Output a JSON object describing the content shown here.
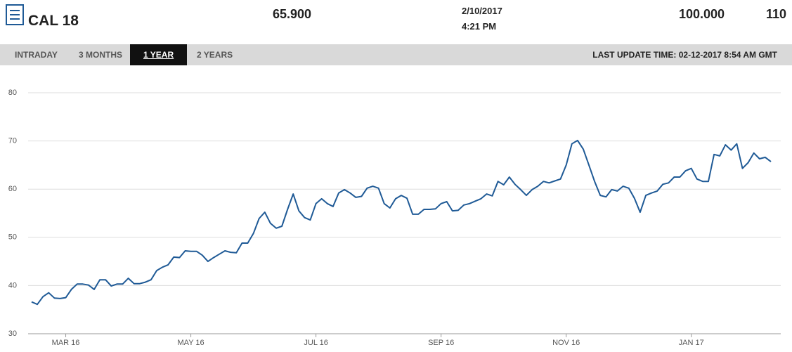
{
  "header": {
    "title": "CAL 18",
    "price": "65.900",
    "date": "2/10/2017",
    "time": "4:21 PM",
    "volume": "100.000",
    "extra": "110"
  },
  "tabs": [
    "INTRADAY",
    "3 MONTHS",
    "1 YEAR",
    "2 YEARS"
  ],
  "active_tab": 2,
  "last_update": "LAST UPDATE TIME: 02-12-2017 8:54 AM GMT",
  "chart_data": {
    "type": "line",
    "color": "#1f5a96",
    "grid": true,
    "ylim": [
      30,
      80
    ],
    "yticks": [
      30,
      40,
      50,
      60,
      70,
      80
    ],
    "categories": [
      null,
      null,
      null,
      null,
      null,
      null,
      "MAR 16",
      null,
      null,
      null,
      null,
      null,
      null,
      null,
      null,
      null,
      null,
      null,
      null,
      null,
      null,
      null,
      null,
      null,
      null,
      null,
      null,
      null,
      "MAY 16",
      null,
      null,
      null,
      null,
      null,
      null,
      null,
      null,
      null,
      null,
      null,
      null,
      null,
      null,
      null,
      null,
      null,
      null,
      null,
      null,
      null,
      "JUL 16",
      null,
      null,
      null,
      null,
      null,
      null,
      null,
      null,
      null,
      null,
      null,
      null,
      null,
      null,
      null,
      null,
      null,
      null,
      null,
      null,
      null,
      "SEP 16",
      null,
      null,
      null,
      null,
      null,
      null,
      null,
      null,
      null,
      null,
      null,
      null,
      null,
      null,
      null,
      null,
      null,
      null,
      null,
      null,
      null,
      "NOV 16",
      null,
      null,
      null,
      null,
      null,
      null,
      null,
      null,
      null,
      null,
      null,
      null,
      null,
      null,
      null,
      null,
      null,
      null,
      null,
      null,
      null,
      "JAN 17",
      null,
      null,
      null,
      null,
      null,
      null,
      null,
      null,
      null,
      null,
      null,
      null,
      null,
      null
    ],
    "values": [
      36.6,
      36.1,
      37.7,
      38.5,
      37.4,
      37.3,
      37.5,
      39.2,
      40.3,
      40.3,
      40.1,
      39.2,
      41.2,
      41.2,
      39.9,
      40.3,
      40.3,
      41.5,
      40.4,
      40.4,
      40.7,
      41.2,
      43.1,
      43.8,
      44.3,
      45.9,
      45.8,
      47.2,
      47.1,
      47.1,
      46.3,
      45.0,
      45.8,
      46.5,
      47.2,
      46.9,
      46.8,
      48.8,
      48.8,
      50.8,
      53.9,
      55.2,
      52.9,
      51.9,
      52.3,
      55.8,
      59.0,
      55.5,
      54.1,
      53.6,
      57.0,
      58.0,
      57.0,
      56.4,
      59.2,
      59.9,
      59.2,
      58.3,
      58.5,
      60.2,
      60.6,
      60.2,
      57.0,
      56.1,
      58.0,
      58.7,
      58.1,
      54.8,
      54.8,
      55.8,
      55.8,
      55.9,
      57.0,
      57.4,
      55.5,
      55.6,
      56.7,
      57.0,
      57.5,
      58.0,
      59.0,
      58.6,
      61.6,
      60.9,
      62.5,
      61.0,
      59.9,
      58.7,
      59.9,
      60.6,
      61.6,
      61.3,
      61.7,
      62.1,
      65.0,
      69.4,
      70.1,
      68.3,
      65.0,
      61.6,
      58.7,
      58.4,
      59.9,
      59.6,
      60.6,
      60.2,
      58.1,
      55.2,
      58.7,
      59.2,
      59.6,
      61.0,
      61.3,
      62.5,
      62.5,
      63.8,
      64.3,
      62.1,
      61.6,
      61.6,
      67.2,
      66.9,
      69.2,
      68.1,
      69.4,
      64.3,
      65.5,
      67.5,
      66.3,
      66.6,
      65.7
    ]
  }
}
